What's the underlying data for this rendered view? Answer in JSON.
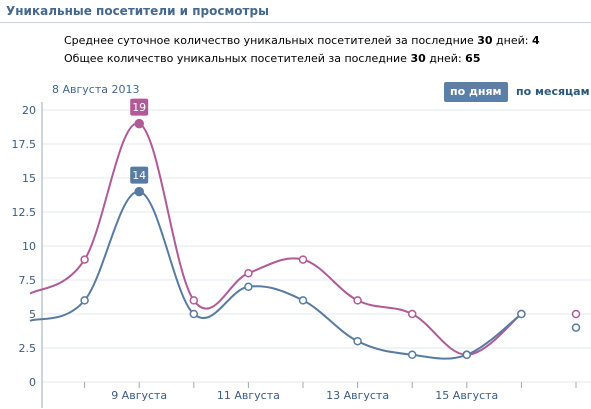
{
  "header": {
    "title": "Уникальные посетители и просмотры"
  },
  "stats": {
    "daily_avg_text": "Среднее суточное количество уникальных посетителей за последние ",
    "daily_avg_days": "30",
    "daily_avg_suffix": " дней: ",
    "daily_avg_value": "4",
    "total_text": "Общее количество уникальных посетителей за последние ",
    "total_days": "30",
    "total_suffix": " дней: ",
    "total_value": "65"
  },
  "chart_header": {
    "date_label": "8 Августа 2013",
    "by_days": "по дням",
    "by_months": "по месяцам"
  },
  "colors": {
    "views": "#b05a97",
    "visitors": "#587ba1",
    "grid": "#e3e8ee",
    "axis": "#9aa8b8"
  },
  "chart_data": {
    "type": "line",
    "ylim": [
      0,
      20
    ],
    "yticks": [
      "0",
      "2.5",
      "5",
      "7.5",
      "10",
      "12.5",
      "15",
      "17.5",
      "20"
    ],
    "xticks": [
      "9 Августа",
      "11 Августа",
      "13 Августа",
      "15 Августа"
    ],
    "x": [
      "7 Августа",
      "8 Августа",
      "9 Августа",
      "10 Августа",
      "11 Августа",
      "12 Августа",
      "13 Августа",
      "14 Августа",
      "15 Августа",
      "16 Августа",
      "17 Августа"
    ],
    "series": [
      {
        "values": [
          6.5,
          9,
          19,
          6,
          8,
          9,
          6,
          5,
          2,
          5,
          5
        ],
        "labeled_point": 2,
        "label": "19"
      },
      {
        "values": [
          4.5,
          6,
          14,
          5,
          7,
          6,
          3,
          2,
          2,
          5,
          4
        ],
        "labeled_point": 2,
        "label": "14"
      }
    ]
  }
}
